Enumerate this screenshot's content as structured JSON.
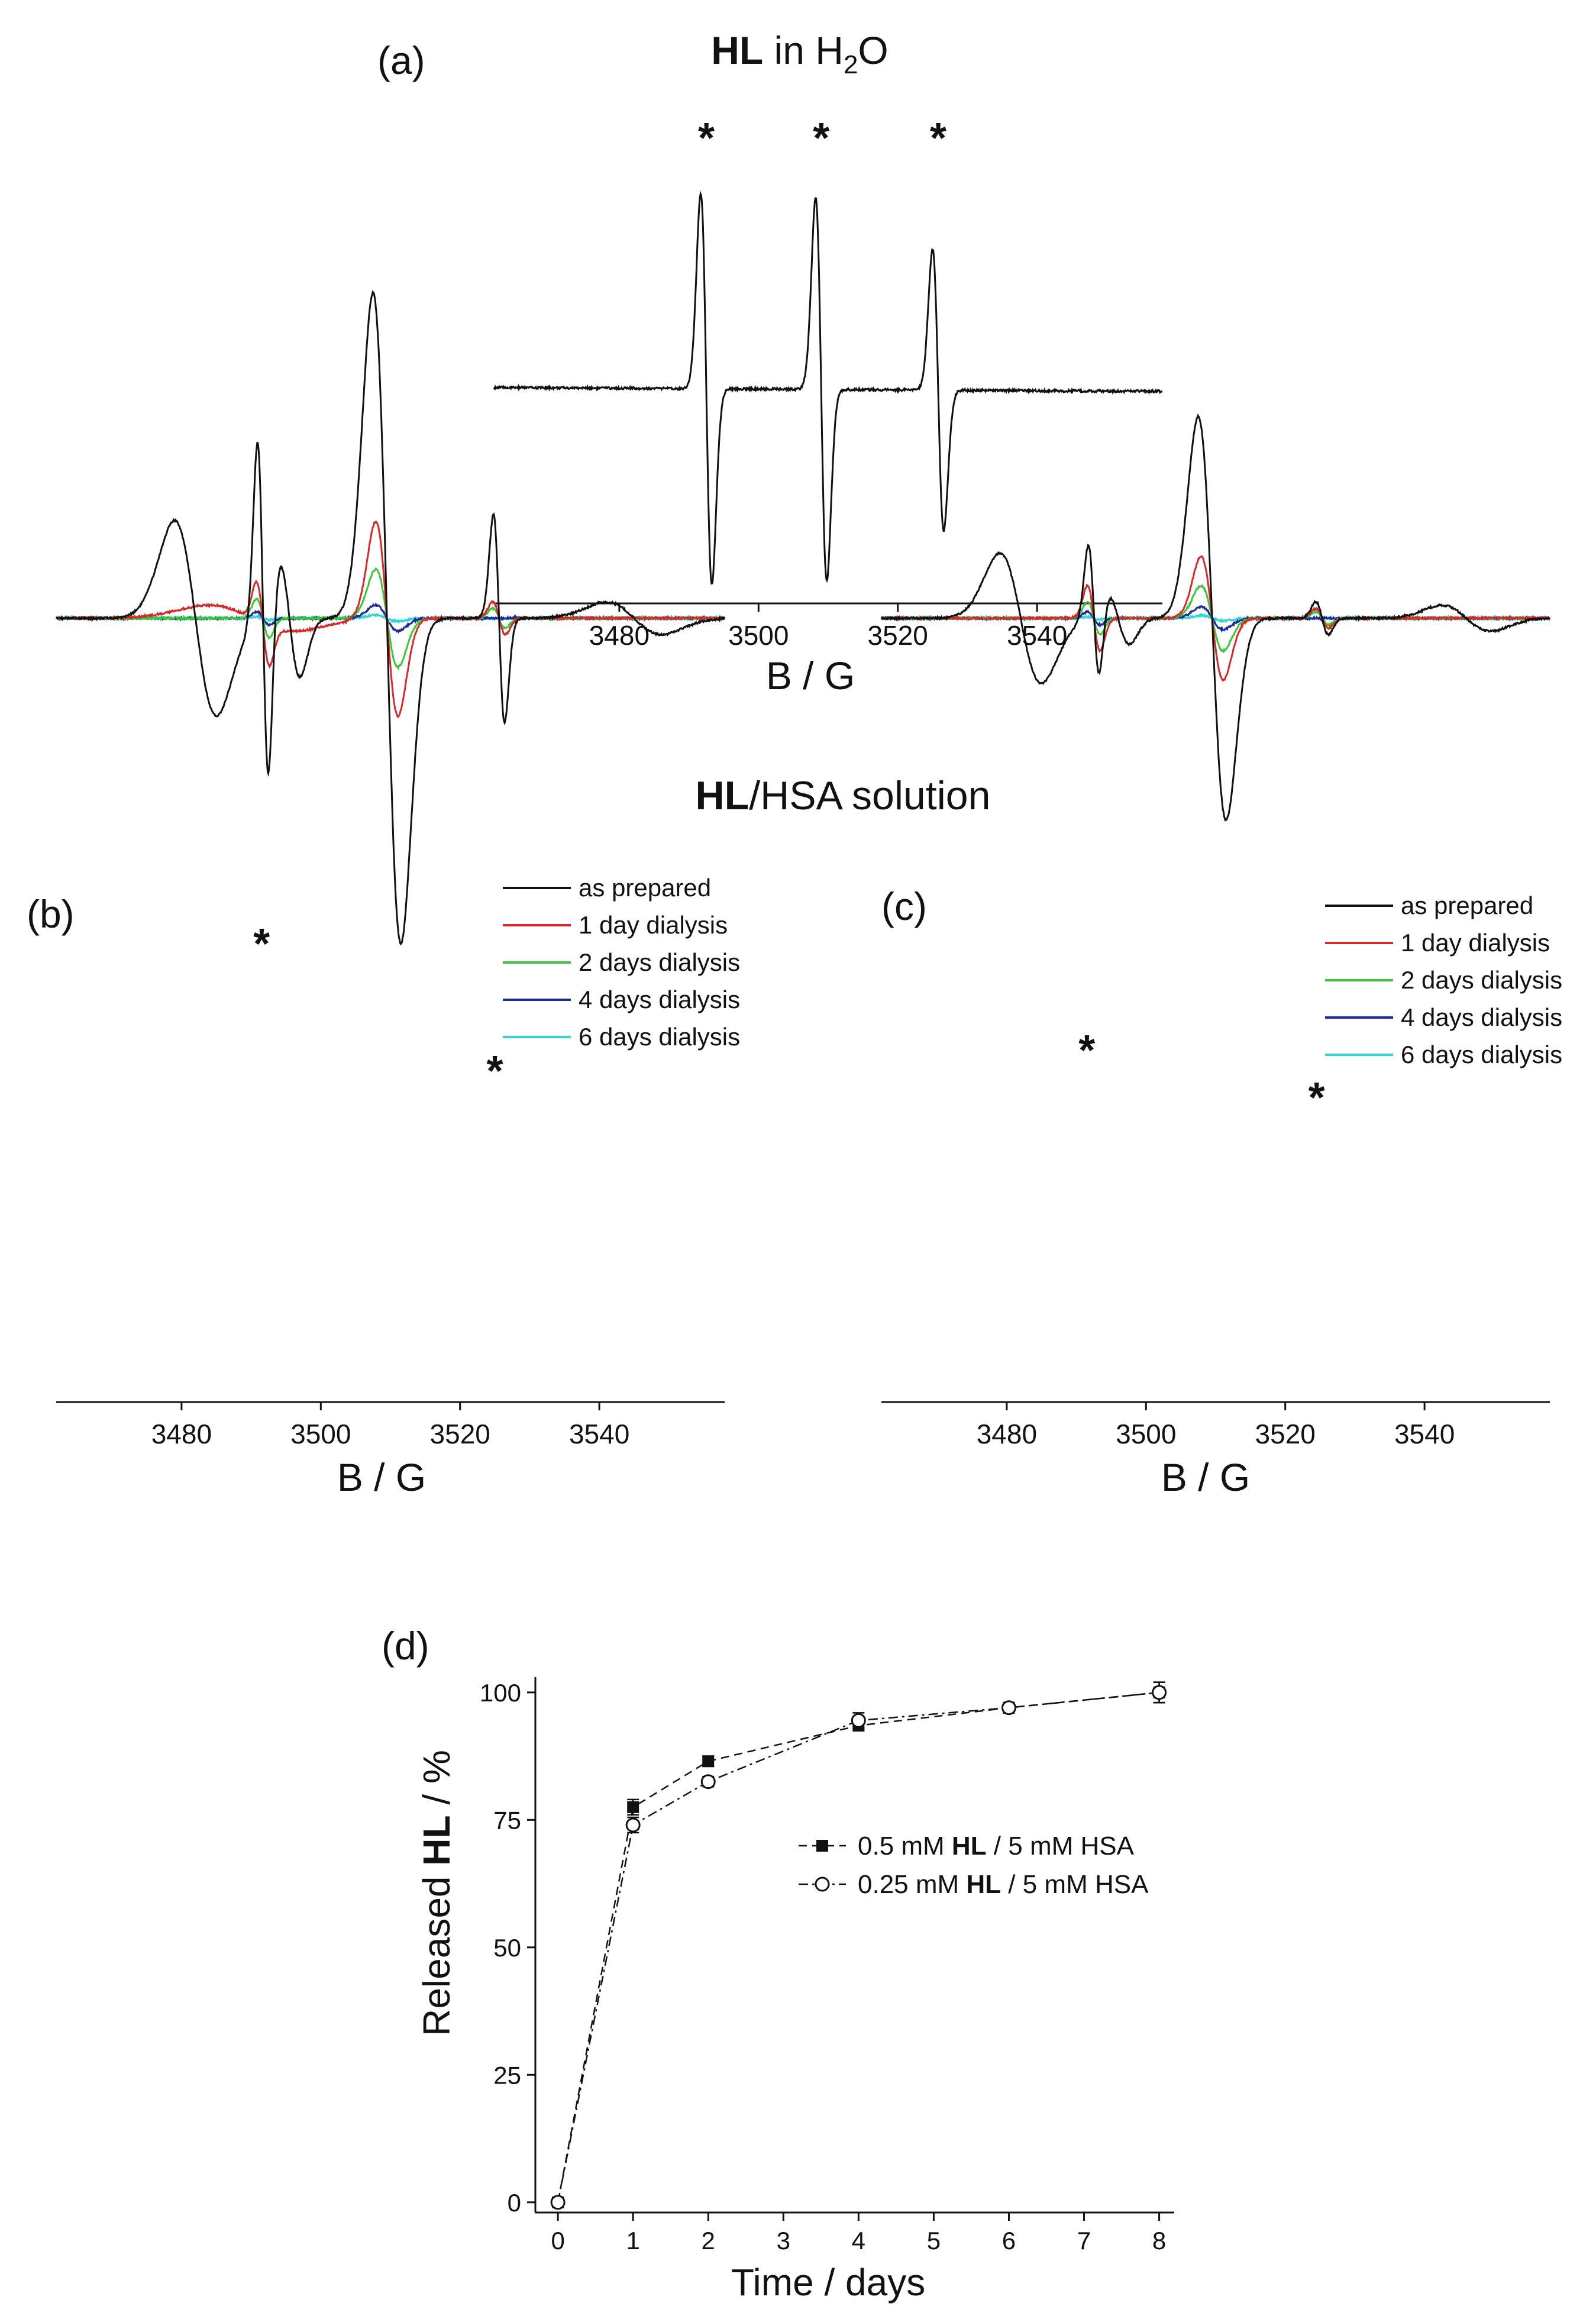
{
  "figure": {
    "colors": {
      "as_prepared": "#111111",
      "day1": "#d42a2a",
      "day2": "#3ac83a",
      "day4": "#1c2a9a",
      "day6": "#35d4d4"
    }
  },
  "chart_data": [
    {
      "id": "a",
      "panel_label": "(a)",
      "type": "line",
      "title_bold": "HL",
      "title_rest": " in H",
      "title_sub": "2",
      "title_end": "O",
      "xlabel": "B / G",
      "ylabel": "",
      "xlim": [
        3462,
        3558
      ],
      "xticks": [
        3480,
        3500,
        3520,
        3540
      ],
      "ylim": [
        -1.1,
        1.05
      ],
      "peak_marker": "*",
      "peaks": [
        3492.5,
        3509.0,
        3525.8
      ],
      "series": [
        {
          "name": "HL in H2O",
          "color": "#111111",
          "baseline": [
            [
              3462,
              0.0
            ],
            [
              3558,
              -0.02
            ]
          ],
          "lines": [
            {
              "x0": 3492.5,
              "hw": 0.8,
              "amp": 1.0
            },
            {
              "x0": 3509.0,
              "hw": 0.8,
              "amp": 0.98
            },
            {
              "x0": 3525.8,
              "hw": 0.8,
              "amp": 0.72
            }
          ]
        }
      ]
    },
    {
      "id": "b",
      "panel_label": "(b)",
      "type": "line",
      "group_title_bold": "HL",
      "group_title_rest": "/HSA solution",
      "xlabel": "B / G",
      "ylabel": "",
      "xlim": [
        3462,
        3558
      ],
      "xticks": [
        3480,
        3500,
        3520,
        3540
      ],
      "ylim": [
        -1.1,
        1.05
      ],
      "peak_marker": "*",
      "peaks": [
        3491.5,
        3525.0
      ],
      "legend": [
        "as prepared",
        "1 day dialysis",
        "2 days dialysis",
        "4 days dialysis",
        "6 days dialysis"
      ],
      "series": [
        {
          "name": "as prepared",
          "color": "#111111",
          "lines": [
            {
              "x0": 3482,
              "hw": 3.0,
              "amp": 0.3
            },
            {
              "x0": 3491.7,
              "hw": 0.8,
              "amp": 0.55
            },
            {
              "x0": 3495.5,
              "hw": 1.5,
              "amp": 0.18
            },
            {
              "x0": 3509.5,
              "hw": 2.0,
              "amp": 1.0
            },
            {
              "x0": 3525.6,
              "hw": 0.8,
              "amp": 0.32
            },
            {
              "x0": 3545,
              "hw": 4.0,
              "amp": 0.05
            }
          ]
        },
        {
          "name": "1 day dialysis",
          "color": "#d42a2a",
          "lines": [
            {
              "x0": 3491.7,
              "hw": 0.9,
              "amp": 0.12
            },
            {
              "x0": 3509.5,
              "hw": 1.6,
              "amp": 0.3
            },
            {
              "x0": 3525.6,
              "hw": 0.9,
              "amp": 0.05
            },
            {
              "x0": 3490,
              "hw": 6.0,
              "amp": 0.04
            }
          ]
        },
        {
          "name": "2 days dialysis",
          "color": "#3ac83a",
          "lines": [
            {
              "x0": 3491.7,
              "hw": 0.9,
              "amp": 0.06
            },
            {
              "x0": 3509.5,
              "hw": 1.6,
              "amp": 0.15
            },
            {
              "x0": 3525.6,
              "hw": 0.9,
              "amp": 0.03
            }
          ]
        },
        {
          "name": "4 days dialysis",
          "color": "#1c2a9a",
          "lines": [
            {
              "x0": 3491.7,
              "hw": 0.9,
              "amp": 0.02
            },
            {
              "x0": 3509.5,
              "hw": 1.6,
              "amp": 0.04
            }
          ]
        },
        {
          "name": "6 days dialysis",
          "color": "#35d4d4",
          "lines": [
            {
              "x0": 3491.7,
              "hw": 0.9,
              "amp": 0.005
            },
            {
              "x0": 3509.5,
              "hw": 1.6,
              "amp": 0.01
            }
          ]
        }
      ]
    },
    {
      "id": "c",
      "panel_label": "(c)",
      "type": "line",
      "xlabel": "B / G",
      "ylabel": "",
      "xlim": [
        3462,
        3558
      ],
      "xticks": [
        3480,
        3500,
        3520,
        3540
      ],
      "ylim": [
        -1.1,
        1.05
      ],
      "peak_marker": "*",
      "peaks": [
        3491.5,
        3524.5
      ],
      "legend": [
        "as prepared",
        "1 day dialysis",
        "2 days dialysis",
        "4 days dialysis",
        "6 days dialysis"
      ],
      "series": [
        {
          "name": "as prepared",
          "color": "#111111",
          "lines": [
            {
              "x0": 3482,
              "hw": 3.0,
              "amp": 0.2
            },
            {
              "x0": 3492.5,
              "hw": 0.8,
              "amp": 0.22
            },
            {
              "x0": 3496,
              "hw": 1.6,
              "amp": 0.08
            },
            {
              "x0": 3509.5,
              "hw": 2.0,
              "amp": 0.62
            },
            {
              "x0": 3525.3,
              "hw": 0.9,
              "amp": 0.05
            },
            {
              "x0": 3546,
              "hw": 3.5,
              "amp": 0.04
            }
          ]
        },
        {
          "name": "1 day dialysis",
          "color": "#d42a2a",
          "lines": [
            {
              "x0": 3492.5,
              "hw": 0.9,
              "amp": 0.1
            },
            {
              "x0": 3509.5,
              "hw": 1.6,
              "amp": 0.19
            },
            {
              "x0": 3525.3,
              "hw": 0.9,
              "amp": 0.03
            }
          ]
        },
        {
          "name": "2 days dialysis",
          "color": "#3ac83a",
          "lines": [
            {
              "x0": 3492.5,
              "hw": 0.9,
              "amp": 0.05
            },
            {
              "x0": 3509.5,
              "hw": 1.6,
              "amp": 0.1
            },
            {
              "x0": 3525.3,
              "hw": 0.9,
              "amp": 0.02
            }
          ]
        },
        {
          "name": "4 days dialysis",
          "color": "#1c2a9a",
          "lines": [
            {
              "x0": 3492.5,
              "hw": 0.9,
              "amp": 0.02
            },
            {
              "x0": 3509.5,
              "hw": 1.6,
              "amp": 0.035
            }
          ]
        },
        {
          "name": "6 days dialysis",
          "color": "#35d4d4",
          "lines": [
            {
              "x0": 3492.5,
              "hw": 0.9,
              "amp": 0.004
            },
            {
              "x0": 3509.5,
              "hw": 1.6,
              "amp": 0.008
            }
          ]
        }
      ]
    },
    {
      "id": "d",
      "panel_label": "(d)",
      "type": "line",
      "xlabel": "Time / days",
      "ylabel_pre": "Released ",
      "ylabel_bold": "HL",
      "ylabel_post": " / %",
      "xlim": [
        -0.3,
        8.2
      ],
      "ylim": [
        -2,
        103
      ],
      "xticks": [
        0,
        1,
        2,
        3,
        4,
        5,
        6,
        7,
        8
      ],
      "yticks": [
        0,
        25,
        50,
        75,
        100
      ],
      "series": [
        {
          "name": "0.5 mM HL / 5 mM HSA",
          "name_pre": "0.5 mM ",
          "name_bold": "HL",
          "name_post": " / 5 mM HSA",
          "marker": "filled-square",
          "linestyle": "dashed",
          "x": [
            0,
            1,
            2,
            4,
            6,
            8
          ],
          "y": [
            0,
            77.5,
            86.5,
            93.5,
            97,
            100
          ],
          "err": [
            0,
            1.5,
            1,
            1,
            1,
            2
          ]
        },
        {
          "name": "0.25 mM HL / 5 mM HSA",
          "name_pre": "0.25 mM ",
          "name_bold": "HL",
          "name_post": " / 5 mM HSA",
          "marker": "open-circle",
          "linestyle": "dashdot",
          "x": [
            0,
            1,
            2,
            4,
            6,
            8
          ],
          "y": [
            0,
            74,
            82.5,
            94.5,
            97,
            100
          ],
          "err": [
            0,
            1.5,
            1,
            1.5,
            1,
            2
          ]
        }
      ]
    }
  ]
}
